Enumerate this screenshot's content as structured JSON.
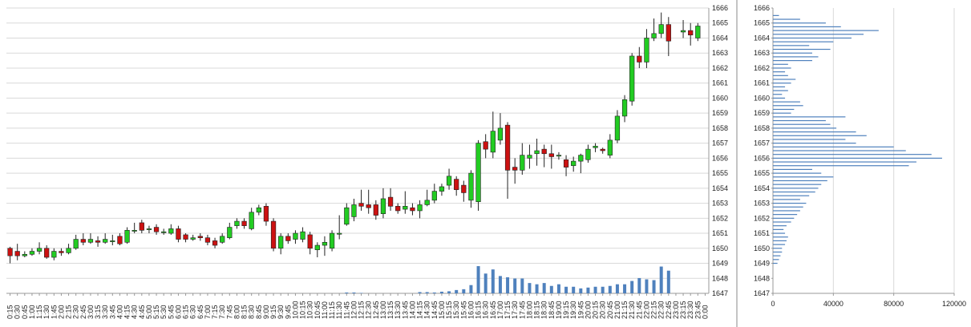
{
  "colors": {
    "up": "#22cc22",
    "down": "#cc1111",
    "wick": "#222222",
    "volume": "#4f81bd",
    "profile": "#4f81bd",
    "grid": "#d9d9d9",
    "divider": "#888888"
  },
  "chart_data": [
    {
      "type": "candlestick",
      "y_axis_position": "right",
      "ylim": [
        1647,
        1666
      ],
      "y_ticks": [
        "1647",
        "1648",
        "1649",
        "1650",
        "1651",
        "1652",
        "1653",
        "1654",
        "1655",
        "1656",
        "1657",
        "1658",
        "1659",
        "1660",
        "1661",
        "1662",
        "1663",
        "1664",
        "1665",
        "1666"
      ],
      "x_labels": [
        "0:15",
        "0:30",
        "0:45",
        "1:00",
        "1:15",
        "1:30",
        "1:45",
        "2:00",
        "2:15",
        "2:30",
        "2:45",
        "3:00",
        "3:15",
        "3:30",
        "3:45",
        "4:00",
        "4:15",
        "4:30",
        "4:45",
        "5:00",
        "5:15",
        "5:30",
        "5:45",
        "6:00",
        "6:15",
        "6:30",
        "6:45",
        "7:00",
        "7:15",
        "7:30",
        "7:45",
        "8:00",
        "8:15",
        "8:30",
        "8:45",
        "9:00",
        "9:15",
        "9:30",
        "9:45",
        "10:00",
        "10:15",
        "10:30",
        "10:45",
        "11:00",
        "11:15",
        "11:30",
        "11:45",
        "12:00",
        "12:15",
        "12:30",
        "12:45",
        "13:00",
        "13:15",
        "13:30",
        "13:45",
        "14:00",
        "14:15",
        "14:30",
        "14:45",
        "15:00",
        "15:15",
        "15:30",
        "15:45",
        "16:00",
        "16:15",
        "16:30",
        "16:45",
        "17:00",
        "17:15",
        "17:30",
        "17:45",
        "18:00",
        "18:15",
        "18:30",
        "18:45",
        "19:00",
        "19:15",
        "19:30",
        "19:45",
        "20:00",
        "20:15",
        "20:30",
        "20:45",
        "21:00",
        "21:15",
        "21:30",
        "21:45",
        "22:00",
        "22:15",
        "22:30",
        "22:45",
        "23:00",
        "23:15",
        "23:30",
        "23:45",
        "0:00"
      ],
      "candles": [
        [
          1650.0,
          1649.5,
          1650.1,
          1649.0
        ],
        [
          1649.8,
          1649.5,
          1650.3,
          1649.2
        ],
        [
          1649.5,
          1649.6,
          1649.8,
          1649.4
        ],
        [
          1649.6,
          1649.8,
          1650.0,
          1649.5
        ],
        [
          1649.8,
          1650.0,
          1650.4,
          1649.6
        ],
        [
          1650.0,
          1649.4,
          1650.2,
          1649.3
        ],
        [
          1649.4,
          1649.8,
          1650.0,
          1649.2
        ],
        [
          1649.8,
          1649.7,
          1650.0,
          1649.5
        ],
        [
          1649.7,
          1650.0,
          1650.3,
          1649.6
        ],
        [
          1650.0,
          1650.6,
          1650.9,
          1649.9
        ],
        [
          1650.6,
          1650.4,
          1651.0,
          1650.2
        ],
        [
          1650.4,
          1650.6,
          1651.0,
          1650.3
        ],
        [
          1650.5,
          1650.4,
          1650.8,
          1650.1
        ],
        [
          1650.4,
          1650.6,
          1651.0,
          1650.3
        ],
        [
          1650.5,
          1650.5,
          1650.9,
          1650.2
        ],
        [
          1650.8,
          1650.3,
          1651.0,
          1650.2
        ],
        [
          1650.4,
          1651.2,
          1651.4,
          1650.3
        ],
        [
          1651.2,
          1651.2,
          1651.7,
          1651.0
        ],
        [
          1651.7,
          1651.2,
          1651.9,
          1651.0
        ],
        [
          1651.3,
          1651.3,
          1651.5,
          1651.0
        ],
        [
          1651.4,
          1651.1,
          1651.6,
          1650.9
        ],
        [
          1651.1,
          1651.1,
          1651.3,
          1650.9
        ],
        [
          1651.0,
          1651.3,
          1651.6,
          1650.9
        ],
        [
          1651.3,
          1650.6,
          1651.5,
          1650.4
        ],
        [
          1650.9,
          1650.6,
          1651.0,
          1650.4
        ],
        [
          1650.6,
          1650.7,
          1650.9,
          1650.5
        ],
        [
          1650.8,
          1650.7,
          1651.0,
          1650.5
        ],
        [
          1650.7,
          1650.4,
          1650.9,
          1650.2
        ],
        [
          1650.5,
          1650.2,
          1650.7,
          1650.0
        ],
        [
          1650.4,
          1650.8,
          1651.0,
          1650.3
        ],
        [
          1650.7,
          1651.4,
          1651.7,
          1650.6
        ],
        [
          1651.5,
          1651.8,
          1652.0,
          1651.3
        ],
        [
          1651.8,
          1651.5,
          1652.0,
          1651.3
        ],
        [
          1651.3,
          1652.4,
          1652.7,
          1651.2
        ],
        [
          1652.4,
          1652.7,
          1652.9,
          1652.2
        ],
        [
          1652.8,
          1651.8,
          1653.0,
          1651.5
        ],
        [
          1651.8,
          1650.0,
          1652.0,
          1649.8
        ],
        [
          1650.0,
          1650.8,
          1651.0,
          1649.6
        ],
        [
          1650.8,
          1650.5,
          1651.0,
          1650.3
        ],
        [
          1650.6,
          1651.0,
          1651.2,
          1650.3
        ],
        [
          1650.6,
          1651.1,
          1651.4,
          1650.4
        ],
        [
          1650.9,
          1650.0,
          1651.1,
          1649.6
        ],
        [
          1649.9,
          1650.2,
          1650.4,
          1649.4
        ],
        [
          1650.2,
          1650.4,
          1650.8,
          1649.5
        ],
        [
          1650.0,
          1651.0,
          1651.2,
          1649.8
        ],
        [
          1651.0,
          1651.0,
          1652.2,
          1650.6
        ],
        [
          1651.6,
          1652.7,
          1653.0,
          1651.5
        ],
        [
          1652.1,
          1652.9,
          1653.3,
          1651.8
        ],
        [
          1653.0,
          1652.8,
          1653.9,
          1652.5
        ],
        [
          1652.9,
          1652.7,
          1653.9,
          1652.3
        ],
        [
          1652.9,
          1652.2,
          1653.2,
          1651.9
        ],
        [
          1652.3,
          1653.3,
          1654.0,
          1652.0
        ],
        [
          1653.4,
          1652.8,
          1654.0,
          1652.5
        ],
        [
          1652.8,
          1652.5,
          1653.0,
          1652.3
        ],
        [
          1652.6,
          1652.8,
          1653.8,
          1652.3
        ],
        [
          1652.7,
          1652.5,
          1653.0,
          1652.2
        ],
        [
          1652.5,
          1652.9,
          1653.2,
          1652.0
        ],
        [
          1652.9,
          1653.2,
          1653.9,
          1652.8
        ],
        [
          1653.2,
          1653.8,
          1654.3,
          1653.0
        ],
        [
          1653.8,
          1654.1,
          1654.3,
          1653.5
        ],
        [
          1654.2,
          1654.8,
          1655.3,
          1653.9
        ],
        [
          1654.6,
          1653.9,
          1654.8,
          1653.5
        ],
        [
          1654.2,
          1653.7,
          1654.5,
          1653.1
        ],
        [
          1653.2,
          1655.0,
          1655.2,
          1652.7
        ],
        [
          1653.1,
          1657.0,
          1657.2,
          1652.5
        ],
        [
          1657.1,
          1656.6,
          1657.6,
          1656.0
        ],
        [
          1656.4,
          1657.8,
          1659.1,
          1656.0
        ],
        [
          1657.2,
          1658.0,
          1659.0,
          1656.9
        ],
        [
          1658.2,
          1655.2,
          1658.4,
          1653.3
        ],
        [
          1655.4,
          1655.2,
          1656.0,
          1654.3
        ],
        [
          1655.2,
          1656.2,
          1657.0,
          1654.9
        ],
        [
          1656.0,
          1656.2,
          1656.9,
          1655.3
        ],
        [
          1656.3,
          1656.5,
          1657.3,
          1655.5
        ],
        [
          1656.6,
          1656.3,
          1656.9,
          1655.4
        ],
        [
          1656.3,
          1656.1,
          1656.9,
          1655.3
        ],
        [
          1656.2,
          1656.2,
          1656.4,
          1655.9
        ],
        [
          1655.9,
          1655.4,
          1656.2,
          1654.8
        ],
        [
          1655.5,
          1655.8,
          1656.1,
          1655.1
        ],
        [
          1655.8,
          1656.2,
          1656.3,
          1655.0
        ],
        [
          1655.9,
          1656.6,
          1656.9,
          1655.7
        ],
        [
          1656.7,
          1656.8,
          1657.0,
          1656.4
        ],
        [
          1656.6,
          1656.5,
          1656.7,
          1656.3
        ],
        [
          1656.2,
          1657.2,
          1657.6,
          1656.0
        ],
        [
          1657.2,
          1658.8,
          1659.2,
          1657.0
        ],
        [
          1658.8,
          1659.9,
          1660.2,
          1658.4
        ],
        [
          1659.8,
          1662.8,
          1663.0,
          1659.5
        ],
        [
          1662.8,
          1662.4,
          1663.4,
          1662.0
        ],
        [
          1662.4,
          1664.0,
          1664.6,
          1662.0
        ],
        [
          1664.0,
          1664.3,
          1665.3,
          1663.8
        ],
        [
          1664.3,
          1664.9,
          1665.7,
          1664.0
        ],
        [
          1664.9,
          1663.8,
          1665.4,
          1662.8
        ],
        [
          null,
          null,
          null,
          null
        ],
        [
          1664.4,
          1664.5,
          1665.2,
          1664.0
        ],
        [
          1664.5,
          1664.2,
          1665.0,
          1663.5
        ],
        [
          1664.0,
          1664.8,
          1665.0,
          1663.8
        ],
        [
          null,
          null,
          null,
          null
        ]
      ],
      "volume": [
        0,
        0,
        0,
        0,
        0,
        0,
        0,
        0,
        0,
        0,
        0,
        0,
        0,
        0,
        0,
        0,
        0,
        0,
        0,
        0,
        0,
        0,
        0,
        0,
        0,
        0,
        0,
        0,
        0,
        0,
        0,
        0,
        0,
        0,
        0,
        0,
        0,
        0,
        0,
        0,
        0,
        0,
        0,
        0,
        0,
        0,
        0.02,
        0.02,
        0.01,
        0,
        0,
        0,
        0,
        0,
        0,
        0,
        0.03,
        0.03,
        0.02,
        0.04,
        0.05,
        0.08,
        0.1,
        0.2,
        0.66,
        0.48,
        0.58,
        0.42,
        0.39,
        0.36,
        0.36,
        0.25,
        0.22,
        0.25,
        0.18,
        0.22,
        0.16,
        0.16,
        0.12,
        0.14,
        0.16,
        0.16,
        0.18,
        0.22,
        0.22,
        0.3,
        0.37,
        0.34,
        0.32,
        0.65,
        0.55,
        0,
        0,
        0,
        0,
        0
      ]
    },
    {
      "type": "bar",
      "orientation": "horizontal",
      "y_ticks": [
        "1647",
        "1648",
        "1649",
        "1650",
        "1651",
        "1652",
        "1653",
        "1654",
        "1655",
        "1656",
        "1657",
        "1658",
        "1659",
        "1660",
        "1661",
        "1662",
        "1663",
        "1664",
        "1665",
        "1666"
      ],
      "ylim": [
        1647,
        1666
      ],
      "x_ticks": [
        "0",
        "40000",
        "80000",
        "120000"
      ],
      "xlim": [
        0,
        120000
      ],
      "bins": [
        [
          1649.0,
          3000
        ],
        [
          1649.25,
          4000
        ],
        [
          1649.5,
          5000
        ],
        [
          1649.75,
          6000
        ],
        [
          1650.0,
          6000
        ],
        [
          1650.25,
          8000
        ],
        [
          1650.5,
          9000
        ],
        [
          1650.75,
          10000
        ],
        [
          1651.0,
          8000
        ],
        [
          1651.25,
          7000
        ],
        [
          1651.5,
          9000
        ],
        [
          1651.75,
          12000
        ],
        [
          1652.0,
          14000
        ],
        [
          1652.25,
          16000
        ],
        [
          1652.5,
          18000
        ],
        [
          1652.75,
          20000
        ],
        [
          1653.0,
          22000
        ],
        [
          1653.25,
          18000
        ],
        [
          1653.5,
          24000
        ],
        [
          1653.75,
          28000
        ],
        [
          1654.0,
          30000
        ],
        [
          1654.25,
          32000
        ],
        [
          1654.5,
          36000
        ],
        [
          1654.75,
          40000
        ],
        [
          1655.0,
          32000
        ],
        [
          1655.25,
          26000
        ],
        [
          1655.5,
          90000
        ],
        [
          1655.75,
          95000
        ],
        [
          1656.0,
          112000
        ],
        [
          1656.25,
          105000
        ],
        [
          1656.5,
          88000
        ],
        [
          1656.75,
          80000
        ],
        [
          1657.0,
          55000
        ],
        [
          1657.25,
          48000
        ],
        [
          1657.5,
          62000
        ],
        [
          1657.75,
          55000
        ],
        [
          1658.0,
          42000
        ],
        [
          1658.25,
          38000
        ],
        [
          1658.5,
          35000
        ],
        [
          1658.75,
          48000
        ],
        [
          1659.0,
          12000
        ],
        [
          1659.25,
          14000
        ],
        [
          1659.5,
          20000
        ],
        [
          1659.75,
          18000
        ],
        [
          1660.0,
          8000
        ],
        [
          1660.25,
          6000
        ],
        [
          1660.5,
          10000
        ],
        [
          1660.75,
          8000
        ],
        [
          1661.0,
          12000
        ],
        [
          1661.25,
          15000
        ],
        [
          1661.5,
          10000
        ],
        [
          1661.75,
          8000
        ],
        [
          1662.0,
          12000
        ],
        [
          1662.25,
          10000
        ],
        [
          1662.5,
          26000
        ],
        [
          1662.75,
          30000
        ],
        [
          1663.0,
          26000
        ],
        [
          1663.25,
          38000
        ],
        [
          1663.5,
          24000
        ],
        [
          1663.75,
          40000
        ],
        [
          1664.0,
          52000
        ],
        [
          1664.25,
          60000
        ],
        [
          1664.5,
          70000
        ],
        [
          1664.75,
          45000
        ],
        [
          1665.0,
          35000
        ],
        [
          1665.25,
          18000
        ],
        [
          1665.5,
          4000
        ]
      ]
    }
  ]
}
